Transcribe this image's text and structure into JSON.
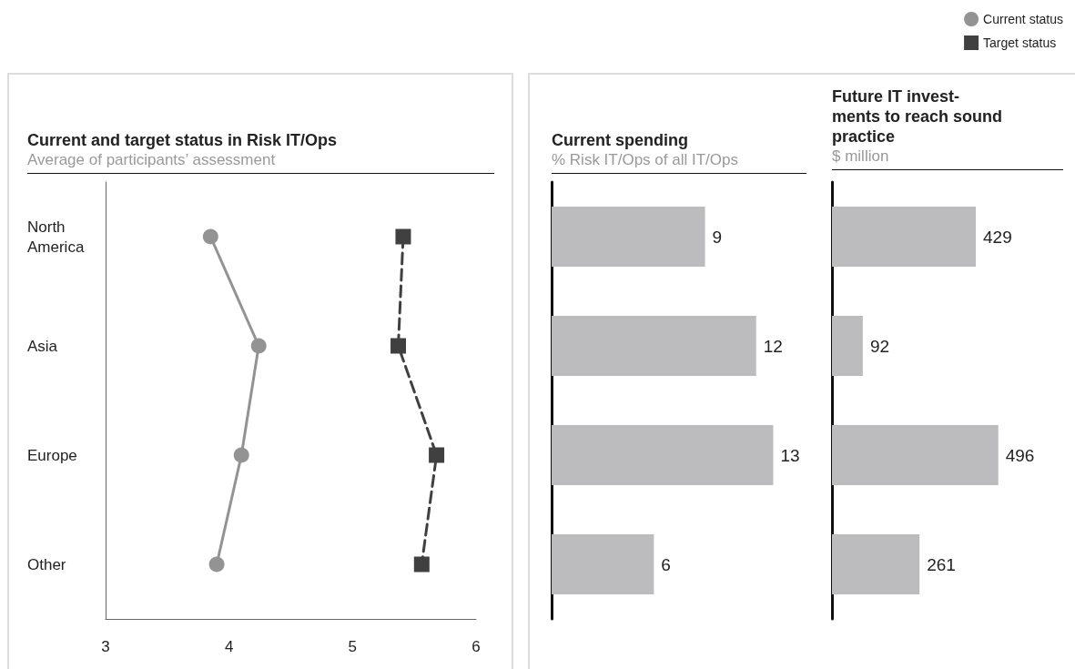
{
  "chart_data": [
    {
      "type": "line",
      "orientation": "horizontal",
      "title": "Current and target status in Risk IT/Ops",
      "subtitle": "Average of participants’ assessment",
      "categories": [
        "North America",
        "Asia",
        "Europe",
        "Other"
      ],
      "series": [
        {
          "name": "Current status",
          "color": "#939393",
          "marker": "circle",
          "line_style": "solid",
          "values": [
            3.85,
            4.24,
            4.1,
            3.9
          ]
        },
        {
          "name": "Target status",
          "color": "#404040",
          "marker": "square",
          "line_style": "dashed",
          "values": [
            5.41,
            5.37,
            5.68,
            5.56
          ]
        }
      ],
      "xlim": [
        3,
        6
      ],
      "xticks": [
        3,
        4,
        5,
        6
      ],
      "grid": false,
      "legend": "top right"
    },
    {
      "type": "bar",
      "orientation": "horizontal",
      "title": "Current spending",
      "subtitle": "% Risk IT/Ops of all IT/Ops",
      "categories": [
        null,
        null,
        null,
        null
      ],
      "values": [
        9,
        12,
        13,
        6
      ],
      "color": "#bcbcbe",
      "data_labels": true
    },
    {
      "type": "bar",
      "orientation": "horizontal",
      "title": "Future IT invest-\nments to reach sound\npractice",
      "subtitle": "$ million",
      "categories": [
        null,
        null,
        null,
        null
      ],
      "values": [
        429,
        92,
        496,
        261
      ],
      "color": "#bcbcbe",
      "data_labels": true
    }
  ]
}
